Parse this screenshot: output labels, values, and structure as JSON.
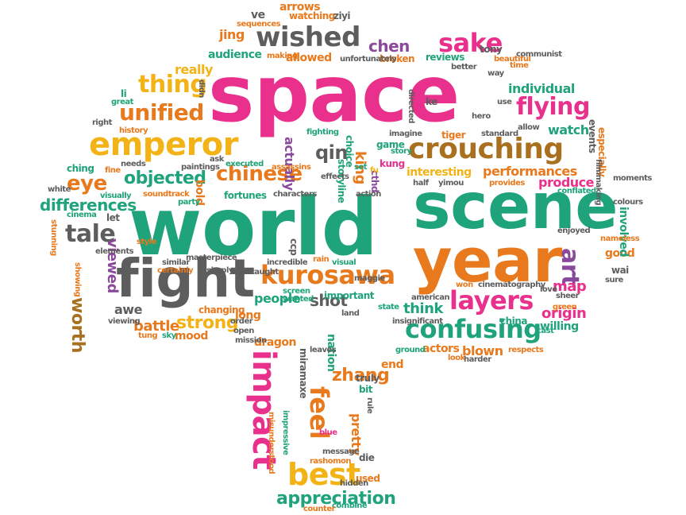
{
  "colors": {
    "pink": "#e8308c",
    "green": "#1fa37a",
    "orange": "#e8791c",
    "gray": "#5d5d5d",
    "yellow": "#f3b316",
    "olive": "#a2b128",
    "brown": "#a8701f",
    "purple": "#8a4a9b"
  },
  "words": [
    {
      "text": "space",
      "color": "pink"
    },
    {
      "text": "world",
      "color": "green"
    },
    {
      "text": "scene",
      "color": "green"
    },
    {
      "text": "year",
      "color": "orange"
    },
    {
      "text": "fight",
      "color": "gray"
    },
    {
      "text": "crouching",
      "color": "brown"
    },
    {
      "text": "emperor",
      "color": "yellow"
    },
    {
      "text": "kurosawa",
      "color": "orange"
    },
    {
      "text": "wished",
      "color": "gray"
    },
    {
      "text": "layers",
      "color": "pink"
    },
    {
      "text": "sake",
      "color": "pink"
    },
    {
      "text": "confusing",
      "color": "green"
    },
    {
      "text": "flying",
      "color": "pink"
    },
    {
      "text": "best",
      "color": "yellow"
    },
    {
      "text": "impact",
      "color": "pink"
    },
    {
      "text": "chinese",
      "color": "orange"
    },
    {
      "text": "unified",
      "color": "orange"
    },
    {
      "text": "thing",
      "color": "yellow"
    },
    {
      "text": "tale",
      "color": "gray"
    },
    {
      "text": "feel",
      "color": "orange"
    },
    {
      "text": "appreciation",
      "color": "green"
    },
    {
      "text": "objected",
      "color": "green"
    },
    {
      "text": "eye",
      "color": "orange"
    },
    {
      "text": "qin",
      "color": "gray"
    },
    {
      "text": "differences",
      "color": "green"
    },
    {
      "text": "art",
      "color": "purple"
    },
    {
      "text": "strong",
      "color": "yellow"
    },
    {
      "text": "performances",
      "color": "orange"
    },
    {
      "text": "chen",
      "color": "purple"
    },
    {
      "text": "zhang",
      "color": "orange"
    },
    {
      "text": "worth",
      "color": "brown"
    },
    {
      "text": "battle",
      "color": "orange"
    },
    {
      "text": "shot",
      "color": "gray"
    },
    {
      "text": "viewed",
      "color": "purple"
    },
    {
      "text": "think",
      "color": "green"
    },
    {
      "text": "map",
      "color": "pink"
    },
    {
      "text": "origin",
      "color": "pink"
    },
    {
      "text": "interesting",
      "color": "yellow"
    },
    {
      "text": "individual",
      "color": "green"
    },
    {
      "text": "watch",
      "color": "green"
    },
    {
      "text": "produce",
      "color": "pink"
    },
    {
      "text": "king",
      "color": "orange"
    },
    {
      "text": "actually",
      "color": "purple"
    },
    {
      "text": "audience",
      "color": "green"
    },
    {
      "text": "allowed",
      "color": "orange"
    },
    {
      "text": "broken",
      "color": "orange"
    },
    {
      "text": "reviews",
      "color": "green"
    },
    {
      "text": "tony",
      "color": "gray"
    },
    {
      "text": "arrows",
      "color": "orange"
    },
    {
      "text": "watching",
      "color": "orange"
    },
    {
      "text": "ziyi",
      "color": "gray"
    },
    {
      "text": "ve",
      "color": "gray"
    },
    {
      "text": "jing",
      "color": "orange"
    },
    {
      "text": "really",
      "color": "yellow"
    },
    {
      "text": "people",
      "color": "green"
    },
    {
      "text": "important",
      "color": "green"
    },
    {
      "text": "long",
      "color": "orange"
    },
    {
      "text": "awe",
      "color": "gray"
    },
    {
      "text": "mood",
      "color": "orange"
    },
    {
      "text": "dragon",
      "color": "orange"
    },
    {
      "text": "actors",
      "color": "orange"
    },
    {
      "text": "blown",
      "color": "orange"
    },
    {
      "text": "end",
      "color": "orange"
    },
    {
      "text": "truly",
      "color": "gray"
    },
    {
      "text": "bit",
      "color": "green"
    },
    {
      "text": "pretty",
      "color": "orange"
    },
    {
      "text": "die",
      "color": "gray"
    },
    {
      "text": "used",
      "color": "orange"
    },
    {
      "text": "nation",
      "color": "green"
    },
    {
      "text": "willing",
      "color": "green"
    },
    {
      "text": "china",
      "color": "green"
    },
    {
      "text": "good",
      "color": "orange"
    },
    {
      "text": "wai",
      "color": "gray"
    },
    {
      "text": "involved",
      "color": "green"
    },
    {
      "text": "especially",
      "color": "orange"
    },
    {
      "text": "events",
      "color": "gray"
    },
    {
      "text": "ching",
      "color": "green"
    },
    {
      "text": "fortunes",
      "color": "green"
    },
    {
      "text": "storyline",
      "color": "green"
    },
    {
      "text": "choice",
      "color": "green"
    },
    {
      "text": "game",
      "color": "green"
    },
    {
      "text": "cinematography",
      "color": "gray"
    },
    {
      "text": "american",
      "color": "gray"
    },
    {
      "text": "miramaxe",
      "color": "gray"
    },
    {
      "text": "maggie",
      "color": "gray"
    },
    {
      "text": "ke",
      "color": "gray"
    },
    {
      "text": "li",
      "color": "green"
    },
    {
      "text": "ccp",
      "color": "gray"
    },
    {
      "text": "fighting",
      "color": "green"
    },
    {
      "text": "kung",
      "color": "pink"
    },
    {
      "text": "cthd",
      "color": "purple"
    },
    {
      "text": "story",
      "color": "green"
    },
    {
      "text": "fu",
      "color": "yellow"
    },
    {
      "text": "bold",
      "color": "orange"
    },
    {
      "text": "let",
      "color": "gray"
    },
    {
      "text": "enjoyed",
      "color": "gray"
    },
    {
      "text": "sure",
      "color": "gray"
    },
    {
      "text": "respects",
      "color": "orange"
    },
    {
      "text": "wanted",
      "color": "green"
    },
    {
      "text": "screen",
      "color": "green"
    },
    {
      "text": "incredible",
      "color": "gray"
    },
    {
      "text": "visual",
      "color": "green"
    },
    {
      "text": "state",
      "color": "green"
    },
    {
      "text": "changing",
      "color": "orange"
    },
    {
      "text": "order",
      "color": "gray"
    },
    {
      "text": "viewing",
      "color": "gray"
    },
    {
      "text": "ground",
      "color": "green"
    },
    {
      "text": "leaves",
      "color": "gray"
    },
    {
      "text": "hidden",
      "color": "gray"
    },
    {
      "text": "combine",
      "color": "green"
    },
    {
      "text": "counter",
      "color": "orange"
    },
    {
      "text": "rashomon",
      "color": "orange"
    },
    {
      "text": "message",
      "color": "gray"
    },
    {
      "text": "blue",
      "color": "pink"
    },
    {
      "text": "harder",
      "color": "gray"
    },
    {
      "text": "look",
      "color": "orange"
    },
    {
      "text": "sky",
      "color": "green"
    },
    {
      "text": "tung",
      "color": "orange"
    },
    {
      "text": "right",
      "color": "gray"
    },
    {
      "text": "great",
      "color": "green"
    },
    {
      "text": "history",
      "color": "orange"
    },
    {
      "text": "needs",
      "color": "gray"
    },
    {
      "text": "fine",
      "color": "orange"
    },
    {
      "text": "white",
      "color": "gray"
    },
    {
      "text": "visually",
      "color": "green"
    },
    {
      "text": "cinema",
      "color": "green"
    },
    {
      "text": "soundtrack",
      "color": "orange"
    },
    {
      "text": "party",
      "color": "green"
    },
    {
      "text": "paintings",
      "color": "gray"
    },
    {
      "text": "executed",
      "color": "green"
    },
    {
      "text": "effects",
      "color": "gray"
    },
    {
      "text": "assassins",
      "color": "orange"
    },
    {
      "text": "characters",
      "color": "gray"
    },
    {
      "text": "action",
      "color": "gray"
    },
    {
      "text": "half",
      "color": "gray"
    },
    {
      "text": "provides",
      "color": "orange"
    },
    {
      "text": "conflated",
      "color": "green"
    },
    {
      "text": "moments",
      "color": "gray"
    },
    {
      "text": "allow",
      "color": "gray"
    },
    {
      "text": "standard",
      "color": "gray"
    },
    {
      "text": "tiger",
      "color": "orange"
    },
    {
      "text": "imagine",
      "color": "gray"
    },
    {
      "text": "better",
      "color": "gray"
    },
    {
      "text": "beautiful",
      "color": "orange"
    },
    {
      "text": "communist",
      "color": "gray"
    },
    {
      "text": "time",
      "color": "orange"
    },
    {
      "text": "unfortunately",
      "color": "gray"
    },
    {
      "text": "making",
      "color": "orange"
    },
    {
      "text": "sequences",
      "color": "orange"
    },
    {
      "text": "elements",
      "color": "gray"
    },
    {
      "text": "similar",
      "color": "gray"
    },
    {
      "text": "masterpiece",
      "color": "gray"
    },
    {
      "text": "certainly",
      "color": "orange"
    },
    {
      "text": "simply",
      "color": "gray"
    },
    {
      "text": "taught",
      "color": "gray"
    },
    {
      "text": "open",
      "color": "gray"
    },
    {
      "text": "mission",
      "color": "gray"
    },
    {
      "text": "impressive",
      "color": "green"
    },
    {
      "text": "misunderstood",
      "color": "orange"
    },
    {
      "text": "rule",
      "color": "gray"
    },
    {
      "text": "green",
      "color": "orange"
    },
    {
      "text": "love",
      "color": "gray"
    },
    {
      "text": "sheer",
      "color": "gray"
    },
    {
      "text": "cast",
      "color": "green"
    },
    {
      "text": "won",
      "color": "orange"
    },
    {
      "text": "insignificant",
      "color": "gray"
    },
    {
      "text": "land",
      "color": "gray"
    },
    {
      "text": "style",
      "color": "orange"
    },
    {
      "text": "showing",
      "color": "orange"
    },
    {
      "text": "stunning",
      "color": "orange"
    },
    {
      "text": "nameless",
      "color": "orange"
    },
    {
      "text": "way",
      "color": "gray"
    },
    {
      "text": "rain",
      "color": "orange"
    },
    {
      "text": "ask",
      "color": "gray"
    },
    {
      "text": "didn",
      "color": "gray"
    },
    {
      "text": "set",
      "color": "green"
    },
    {
      "text": "yimou",
      "color": "gray"
    },
    {
      "text": "directed",
      "color": "gray"
    },
    {
      "text": "hero",
      "color": "gray"
    },
    {
      "text": "filmmaking",
      "color": "gray"
    },
    {
      "text": "colours",
      "color": "gray"
    },
    {
      "text": "use",
      "color": "gray"
    }
  ]
}
